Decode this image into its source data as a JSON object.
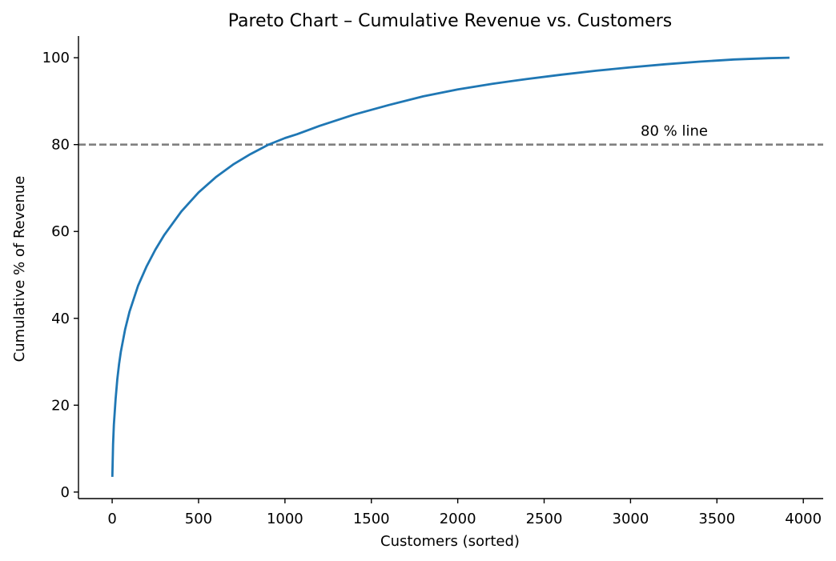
{
  "chart_data": {
    "type": "line",
    "title": "Pareto Chart – Cumulative Revenue vs. Customers",
    "xlabel": "Customers (sorted)",
    "ylabel": "Cumulative % of Revenue",
    "xlim": [
      -195,
      4115
    ],
    "ylim": [
      -1.5,
      105
    ],
    "x_ticks": [
      0,
      500,
      1000,
      1500,
      2000,
      2500,
      3000,
      3500,
      4000
    ],
    "y_ticks": [
      0,
      20,
      40,
      60,
      80,
      100
    ],
    "grid": false,
    "series": [
      {
        "color": "#1f77b4",
        "x": [
          1,
          5,
          10,
          20,
          30,
          40,
          50,
          75,
          100,
          150,
          200,
          250,
          300,
          400,
          500,
          600,
          700,
          800,
          900,
          1000,
          1070,
          1200,
          1400,
          1600,
          1800,
          2000,
          2200,
          2400,
          2600,
          2800,
          3000,
          3200,
          3400,
          3600,
          3800,
          3920
        ],
        "y": [
          3.5,
          11,
          15.5,
          21.5,
          26,
          29.5,
          32.3,
          37.5,
          41.5,
          47.5,
          52,
          55.8,
          59.1,
          64.6,
          69,
          72.5,
          75.4,
          77.8,
          79.9,
          81.5,
          82.4,
          84.3,
          86.9,
          89.1,
          91.1,
          92.7,
          94.0,
          95.1,
          96.1,
          97.0,
          97.8,
          98.5,
          99.1,
          99.6,
          99.9,
          100.0
        ]
      }
    ],
    "reference_line": {
      "y": 80,
      "color": "#808080",
      "label": "80 % line"
    }
  }
}
